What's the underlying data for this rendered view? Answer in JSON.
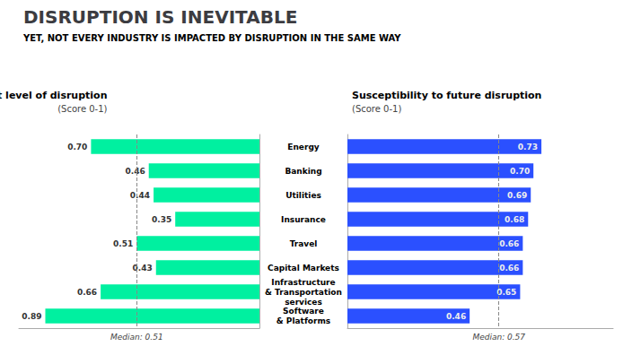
{
  "title": "DISRUPTION IS INEVITABLE",
  "subtitle": "YET, NOT EVERY INDUSTRY IS IMPACTED BY DISRUPTION IN THE SAME WAY",
  "chart_data": [
    {
      "type": "bar",
      "orientation": "horizontal",
      "title": "Current level of disruption",
      "subtitle": "(Score 0-1)",
      "categories": [
        "Energy",
        "Banking",
        "Utilities",
        "Insurance",
        "Travel",
        "Capital Markets",
        "Infrastructure\n& Transportation\nservices",
        "Software\n& Platforms"
      ],
      "values": [
        0.7,
        0.46,
        0.44,
        0.35,
        0.51,
        0.43,
        0.66,
        0.89
      ],
      "value_labels": [
        "0.70",
        "0.46",
        "0.44",
        "0.35",
        "0.51",
        "0.43",
        "0.66",
        "0.89"
      ],
      "color": "#00f0a0",
      "xlim": [
        1.0,
        0.0
      ],
      "data_labels": true,
      "tick_labels": false,
      "grid": false,
      "annotations": [
        {
          "x": 0.51,
          "text": "Median: 0.51"
        }
      ]
    },
    {
      "type": "bar",
      "orientation": "horizontal",
      "title": "Susceptibility to future disruption",
      "subtitle": "(Score 0-1)",
      "categories": [
        "Energy",
        "Banking",
        "Utilities",
        "Insurance",
        "Travel",
        "Capital Markets",
        "Infrastructure\n& Transportation\nservices",
        "Software\n& Platforms"
      ],
      "values": [
        0.73,
        0.7,
        0.69,
        0.68,
        0.66,
        0.66,
        0.65,
        0.46
      ],
      "value_labels": [
        "0.73",
        "0.70",
        "0.69",
        "0.68",
        "0.66",
        "0.66",
        "0.65",
        "0.46"
      ],
      "color": "#2b50ff",
      "xlim": [
        0.0,
        1.0
      ],
      "data_labels": true,
      "tick_labels": "y",
      "grid": false,
      "annotations": [
        {
          "x": 0.57,
          "text": "Median: 0.57"
        }
      ]
    }
  ]
}
